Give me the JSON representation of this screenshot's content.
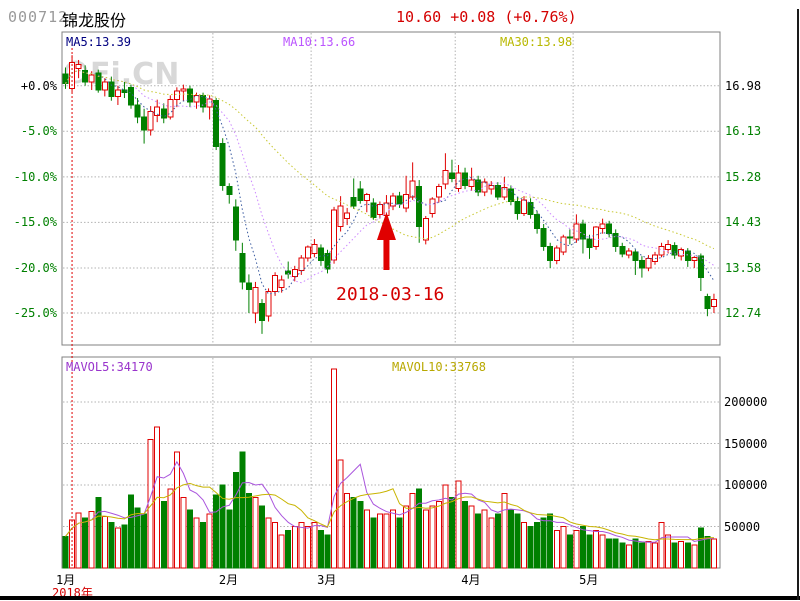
{
  "header": {
    "stock_code": "000712",
    "stock_name": "锦龙股份",
    "price": "10.60",
    "change": "+0.08",
    "change_pct": "(+0.76%)"
  },
  "main_chart": {
    "ma_labels": [
      {
        "label": "MA5:13.39",
        "color": "#000080"
      },
      {
        "label": "MA10:13.66",
        "color": "#bb55ff"
      },
      {
        "label": "MA30:13.98",
        "color": "#b8b800"
      }
    ],
    "left_axis": [
      "+0.0%",
      "-5.0%",
      "-10.0%",
      "-15.0%",
      "-20.0%",
      "-25.0%"
    ],
    "right_axis": [
      "16.98",
      "16.13",
      "15.28",
      "14.43",
      "13.58",
      "12.74"
    ],
    "watermark": "Fi.CN",
    "annotation": {
      "text": "2018-03-16"
    }
  },
  "volume_chart": {
    "mavol_labels": [
      {
        "label": "MAVOL5:34170",
        "color": "#9933cc"
      },
      {
        "label": "MAVOL10:33768",
        "color": "#b8a800"
      }
    ],
    "right_axis": [
      "200000",
      "150000",
      "100000",
      "50000"
    ]
  },
  "x_axis": {
    "months": [
      "1月",
      "2月",
      "3月",
      "4月",
      "5月"
    ],
    "year": "2018年"
  },
  "colors": {
    "up": "#e00000",
    "down": "#008000",
    "ma5_line": "#3a5ba0",
    "ma10_line": "#cc88ff",
    "ma30_line": "#c8c832",
    "mavol5_line": "#aa55dd",
    "mavol10_line": "#c8b400",
    "grid": "#b3b3b3",
    "border": "#808080",
    "crosshair": "#e00000",
    "arrow": "#e00000",
    "watermark": "#d8d8d8"
  },
  "chart_data": {
    "type": "candlestick+volume",
    "title": "000712 锦龙股份 daily chart Jan-May 2018",
    "baseline_price": 16.98,
    "price_gridlines": [
      16.98,
      16.13,
      15.28,
      14.43,
      13.58,
      12.74
    ],
    "pct_gridlines": [
      0.0,
      -5.0,
      -10.0,
      -15.0,
      -20.0,
      -25.0
    ],
    "volume_gridlines": [
      50000,
      100000,
      150000,
      200000
    ],
    "month_start_indices": [
      0,
      23,
      38,
      60,
      78
    ],
    "crosshair_index": 1,
    "arrow_index": 49,
    "candles": [
      [
        17.2,
        17.32,
        16.92,
        17.02,
        38000
      ],
      [
        16.93,
        17.55,
        16.86,
        17.41,
        58000
      ],
      [
        17.3,
        17.46,
        17.12,
        17.38,
        66000
      ],
      [
        17.26,
        17.36,
        16.98,
        17.05,
        60000
      ],
      [
        17.05,
        17.25,
        16.9,
        17.18,
        68000
      ],
      [
        17.22,
        17.28,
        16.85,
        16.9,
        85000
      ],
      [
        16.9,
        17.12,
        16.78,
        17.05,
        62000
      ],
      [
        17.05,
        17.15,
        16.7,
        16.78,
        55000
      ],
      [
        16.78,
        16.98,
        16.62,
        16.9,
        48000
      ],
      [
        16.9,
        17.05,
        16.75,
        16.85,
        52000
      ],
      [
        16.95,
        17.0,
        16.55,
        16.62,
        88000
      ],
      [
        16.62,
        16.75,
        16.28,
        16.4,
        72000
      ],
      [
        16.4,
        16.55,
        15.9,
        16.15,
        65000
      ],
      [
        16.15,
        16.6,
        16.05,
        16.5,
        155000
      ],
      [
        16.42,
        16.72,
        16.3,
        16.58,
        170000
      ],
      [
        16.55,
        16.65,
        16.28,
        16.38,
        80000
      ],
      [
        16.4,
        16.8,
        16.35,
        16.72,
        95000
      ],
      [
        16.72,
        16.95,
        16.58,
        16.88,
        140000
      ],
      [
        16.88,
        17.0,
        16.7,
        16.92,
        85000
      ],
      [
        16.92,
        16.98,
        16.58,
        16.68,
        70000
      ],
      [
        16.68,
        16.85,
        16.55,
        16.8,
        60000
      ],
      [
        16.8,
        16.85,
        16.48,
        16.58,
        55000
      ],
      [
        16.58,
        16.8,
        16.35,
        16.73,
        65000
      ],
      [
        16.7,
        16.75,
        15.78,
        15.85,
        88000
      ],
      [
        15.9,
        16.0,
        15.02,
        15.12,
        100000
      ],
      [
        15.1,
        15.16,
        14.78,
        14.95,
        70000
      ],
      [
        14.72,
        14.86,
        13.9,
        14.1,
        115000
      ],
      [
        13.85,
        14.05,
        13.18,
        13.32,
        140000
      ],
      [
        13.3,
        13.46,
        12.74,
        13.18,
        90000
      ],
      [
        12.74,
        13.32,
        12.55,
        13.22,
        85000
      ],
      [
        12.92,
        13.0,
        12.35,
        12.6,
        75000
      ],
      [
        12.68,
        13.2,
        12.58,
        13.14,
        60000
      ],
      [
        13.14,
        13.5,
        13.06,
        13.44,
        55000
      ],
      [
        13.22,
        13.44,
        13.12,
        13.36,
        40000
      ],
      [
        13.52,
        13.7,
        13.38,
        13.47,
        45000
      ],
      [
        13.42,
        13.62,
        13.33,
        13.55,
        50000
      ],
      [
        13.53,
        13.82,
        13.45,
        13.77,
        55000
      ],
      [
        13.77,
        14.0,
        13.7,
        13.97,
        50000
      ],
      [
        13.85,
        14.12,
        13.78,
        14.02,
        55000
      ],
      [
        13.95,
        14.02,
        13.62,
        13.72,
        45000
      ],
      [
        13.85,
        13.92,
        13.48,
        13.56,
        40000
      ],
      [
        13.73,
        14.72,
        13.66,
        14.66,
        240000
      ],
      [
        14.35,
        14.92,
        14.26,
        14.74,
        130000
      ],
      [
        14.5,
        14.7,
        14.38,
        14.61,
        90000
      ],
      [
        14.89,
        15.25,
        14.68,
        14.74,
        85000
      ],
      [
        15.05,
        15.2,
        14.78,
        14.84,
        80000
      ],
      [
        14.84,
        14.98,
        14.62,
        14.95,
        70000
      ],
      [
        14.79,
        14.88,
        14.48,
        14.52,
        60000
      ],
      [
        14.58,
        14.82,
        14.5,
        14.76,
        65000
      ],
      [
        14.56,
        14.94,
        14.47,
        14.79,
        65000
      ],
      [
        14.74,
        14.98,
        14.66,
        14.92,
        70000
      ],
      [
        14.92,
        15.0,
        14.7,
        14.77,
        60000
      ],
      [
        14.7,
        15.3,
        14.62,
        14.95,
        75000
      ],
      [
        14.9,
        15.55,
        14.85,
        15.2,
        90000
      ],
      [
        15.1,
        15.22,
        14.05,
        14.35,
        95000
      ],
      [
        14.1,
        14.55,
        14.02,
        14.5,
        70000
      ],
      [
        14.6,
        14.9,
        14.52,
        14.87,
        75000
      ],
      [
        14.9,
        15.15,
        14.8,
        15.1,
        80000
      ],
      [
        15.15,
        15.72,
        15.05,
        15.4,
        100000
      ],
      [
        15.35,
        15.6,
        15.18,
        15.25,
        85000
      ],
      [
        15.06,
        15.5,
        15.0,
        15.35,
        105000
      ],
      [
        15.35,
        15.45,
        15.05,
        15.12,
        80000
      ],
      [
        15.1,
        15.45,
        15.02,
        15.22,
        75000
      ],
      [
        15.22,
        15.3,
        14.92,
        15.0,
        65000
      ],
      [
        15.0,
        15.25,
        14.92,
        15.18,
        70000
      ],
      [
        15.05,
        15.2,
        14.95,
        15.12,
        60000
      ],
      [
        15.12,
        15.18,
        14.85,
        14.9,
        65000
      ],
      [
        14.9,
        15.28,
        14.85,
        15.08,
        90000
      ],
      [
        15.05,
        15.12,
        14.75,
        14.82,
        70000
      ],
      [
        14.82,
        14.9,
        14.48,
        14.6,
        65000
      ],
      [
        14.6,
        14.92,
        14.55,
        14.85,
        55000
      ],
      [
        14.8,
        14.88,
        14.5,
        14.58,
        50000
      ],
      [
        14.58,
        14.65,
        14.22,
        14.32,
        55000
      ],
      [
        14.32,
        14.4,
        13.9,
        13.98,
        60000
      ],
      [
        13.98,
        14.05,
        13.58,
        13.72,
        65000
      ],
      [
        13.72,
        14.0,
        13.65,
        13.95,
        45000
      ],
      [
        13.88,
        14.2,
        13.82,
        14.16,
        50000
      ],
      [
        14.16,
        14.3,
        14.02,
        14.15,
        40000
      ],
      [
        14.12,
        14.58,
        14.05,
        14.4,
        45000
      ],
      [
        14.4,
        14.48,
        13.85,
        14.12,
        50000
      ],
      [
        14.12,
        14.2,
        13.75,
        13.96,
        40000
      ],
      [
        13.98,
        14.36,
        13.92,
        14.34,
        45000
      ],
      [
        14.32,
        14.5,
        14.22,
        14.4,
        40000
      ],
      [
        14.4,
        14.46,
        14.15,
        14.22,
        35000
      ],
      [
        14.22,
        14.3,
        13.88,
        13.98,
        35000
      ],
      [
        13.98,
        14.05,
        13.78,
        13.84,
        30000
      ],
      [
        13.82,
        13.95,
        13.76,
        13.9,
        28000
      ],
      [
        13.88,
        13.92,
        13.45,
        13.72,
        35000
      ],
      [
        13.72,
        13.8,
        13.4,
        13.58,
        30000
      ],
      [
        13.58,
        13.82,
        13.52,
        13.76,
        32000
      ],
      [
        13.7,
        13.88,
        13.64,
        13.82,
        30000
      ],
      [
        13.82,
        14.05,
        13.78,
        13.98,
        55000
      ],
      [
        13.92,
        14.1,
        13.85,
        14.02,
        40000
      ],
      [
        14.0,
        14.06,
        13.75,
        13.82,
        30000
      ],
      [
        13.8,
        13.96,
        13.72,
        13.92,
        32000
      ],
      [
        13.9,
        13.95,
        13.6,
        13.72,
        30000
      ],
      [
        13.72,
        13.8,
        13.58,
        13.78,
        28000
      ],
      [
        13.8,
        13.85,
        13.15,
        13.4,
        48000
      ],
      [
        13.05,
        13.1,
        12.68,
        12.82,
        38000
      ],
      [
        12.86,
        13.1,
        12.74,
        12.99,
        35000
      ]
    ]
  }
}
